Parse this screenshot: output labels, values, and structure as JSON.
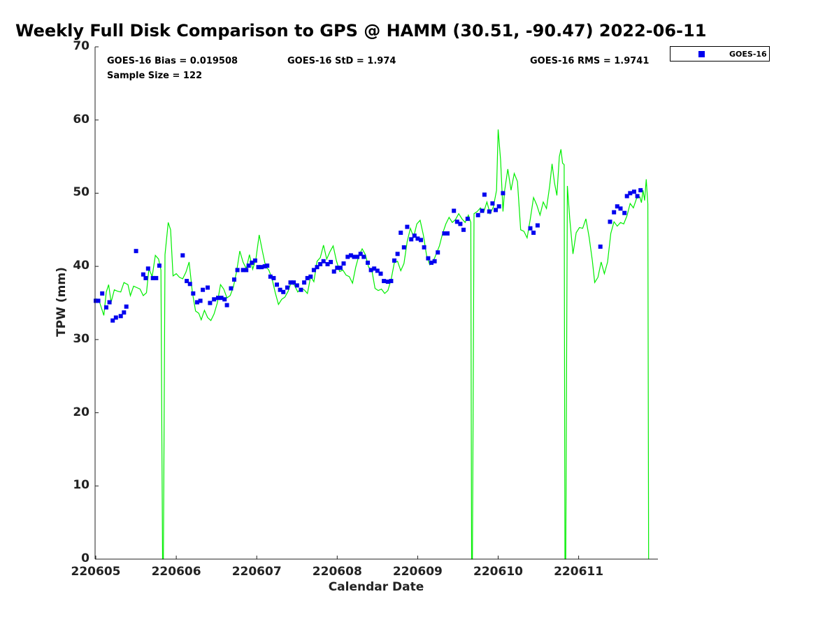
{
  "chart_data": {
    "type": "scatter",
    "title": "Weekly Full Disk Comparison to GPS @ HAMM (30.51, -90.47) 2022-06-11",
    "xlabel": "Calendar Date",
    "ylabel": "TPW (mm)",
    "x_ticks": [
      "220605",
      "220606",
      "220607",
      "220608",
      "220609",
      "220610",
      "220611"
    ],
    "y_ticks": [
      "0",
      "10",
      "20",
      "30",
      "40",
      "50",
      "60",
      "70"
    ],
    "xlim": [
      0,
      7
    ],
    "ylim": [
      0,
      70
    ],
    "stats": {
      "bias": "GOES-16 Bias = 0.019508",
      "std": "GOES-16 StD = 1.974",
      "rms": "GOES-16 RMS = 1.9741",
      "sample": "Sample Size = 122"
    },
    "legend": {
      "position": "top-right outside",
      "label": "GOES-16"
    },
    "colors": {
      "goes": "#0000ee",
      "gps": "#00ee00"
    },
    "series": [
      {
        "name": "GOES-16",
        "style": "square-markers",
        "points": [
          [
            0.0,
            35.3
          ],
          [
            0.03,
            35.3
          ],
          [
            0.08,
            36.3
          ],
          [
            0.13,
            34.4
          ],
          [
            0.17,
            35.1
          ],
          [
            0.21,
            32.6
          ],
          [
            0.25,
            33.0
          ],
          [
            0.31,
            33.2
          ],
          [
            0.35,
            33.7
          ],
          [
            0.38,
            34.5
          ],
          [
            0.5,
            42.1
          ],
          [
            0.59,
            38.9
          ],
          [
            0.62,
            38.4
          ],
          [
            0.65,
            39.7
          ],
          [
            0.71,
            38.4
          ],
          [
            0.75,
            38.4
          ],
          [
            0.79,
            40.1
          ],
          [
            1.08,
            41.5
          ],
          [
            1.13,
            38.0
          ],
          [
            1.17,
            37.6
          ],
          [
            1.21,
            36.3
          ],
          [
            1.26,
            35.1
          ],
          [
            1.3,
            35.3
          ],
          [
            1.33,
            36.8
          ],
          [
            1.39,
            37.1
          ],
          [
            1.42,
            35.0
          ],
          [
            1.47,
            35.5
          ],
          [
            1.52,
            35.7
          ],
          [
            1.56,
            35.7
          ],
          [
            1.6,
            35.5
          ],
          [
            1.63,
            34.7
          ],
          [
            1.68,
            37.0
          ],
          [
            1.72,
            38.2
          ],
          [
            1.76,
            39.5
          ],
          [
            1.83,
            39.5
          ],
          [
            1.87,
            39.5
          ],
          [
            1.9,
            40.1
          ],
          [
            1.94,
            40.5
          ],
          [
            1.98,
            40.8
          ],
          [
            2.02,
            39.9
          ],
          [
            2.06,
            39.9
          ],
          [
            2.1,
            40.0
          ],
          [
            2.13,
            40.1
          ],
          [
            2.17,
            38.6
          ],
          [
            2.21,
            38.4
          ],
          [
            2.25,
            37.5
          ],
          [
            2.29,
            36.8
          ],
          [
            2.33,
            36.5
          ],
          [
            2.38,
            37.1
          ],
          [
            2.42,
            37.8
          ],
          [
            2.46,
            37.8
          ],
          [
            2.5,
            37.4
          ],
          [
            2.55,
            36.8
          ],
          [
            2.59,
            37.8
          ],
          [
            2.63,
            38.4
          ],
          [
            2.67,
            38.6
          ],
          [
            2.71,
            39.5
          ],
          [
            2.75,
            39.9
          ],
          [
            2.79,
            40.3
          ],
          [
            2.83,
            40.7
          ],
          [
            2.88,
            40.3
          ],
          [
            2.92,
            40.6
          ],
          [
            2.96,
            39.3
          ],
          [
            3.0,
            39.8
          ],
          [
            3.04,
            39.8
          ],
          [
            3.08,
            40.4
          ],
          [
            3.13,
            41.3
          ],
          [
            3.17,
            41.5
          ],
          [
            3.21,
            41.3
          ],
          [
            3.25,
            41.3
          ],
          [
            3.29,
            41.7
          ],
          [
            3.33,
            41.3
          ],
          [
            3.38,
            40.5
          ],
          [
            3.42,
            39.5
          ],
          [
            3.46,
            39.7
          ],
          [
            3.5,
            39.4
          ],
          [
            3.54,
            39.0
          ],
          [
            3.58,
            38.0
          ],
          [
            3.63,
            37.9
          ],
          [
            3.67,
            38.0
          ],
          [
            3.71,
            40.8
          ],
          [
            3.75,
            41.7
          ],
          [
            3.79,
            44.6
          ],
          [
            3.83,
            42.6
          ],
          [
            3.87,
            45.4
          ],
          [
            3.92,
            43.7
          ],
          [
            3.96,
            44.2
          ],
          [
            4.0,
            43.8
          ],
          [
            4.04,
            43.6
          ],
          [
            4.08,
            42.6
          ],
          [
            4.13,
            41.1
          ],
          [
            4.17,
            40.5
          ],
          [
            4.21,
            40.7
          ],
          [
            4.25,
            41.9
          ],
          [
            4.33,
            44.5
          ],
          [
            4.37,
            44.5
          ],
          [
            4.45,
            47.6
          ],
          [
            4.49,
            46.1
          ],
          [
            4.53,
            45.8
          ],
          [
            4.57,
            45.0
          ],
          [
            4.62,
            46.5
          ],
          [
            4.75,
            47.0
          ],
          [
            4.8,
            47.6
          ],
          [
            4.83,
            49.8
          ],
          [
            4.89,
            47.5
          ],
          [
            4.93,
            48.6
          ],
          [
            4.97,
            47.7
          ],
          [
            5.01,
            48.2
          ],
          [
            5.06,
            50.0
          ],
          [
            5.4,
            45.2
          ],
          [
            5.44,
            44.6
          ],
          [
            5.49,
            45.6
          ],
          [
            6.27,
            42.7
          ],
          [
            6.39,
            46.1
          ],
          [
            6.44,
            47.4
          ],
          [
            6.48,
            48.2
          ],
          [
            6.52,
            47.9
          ],
          [
            6.57,
            47.3
          ],
          [
            6.6,
            49.6
          ],
          [
            6.64,
            50.0
          ],
          [
            6.69,
            50.2
          ],
          [
            6.73,
            49.6
          ],
          [
            6.77,
            50.4
          ]
        ]
      },
      {
        "name": "GPS",
        "style": "line",
        "points": [
          [
            0.0,
            35.6
          ],
          [
            0.05,
            35.0
          ],
          [
            0.1,
            33.3
          ],
          [
            0.13,
            36.5
          ],
          [
            0.16,
            37.5
          ],
          [
            0.19,
            35.1
          ],
          [
            0.23,
            36.8
          ],
          [
            0.27,
            36.6
          ],
          [
            0.31,
            36.5
          ],
          [
            0.35,
            37.8
          ],
          [
            0.4,
            37.5
          ],
          [
            0.43,
            36.0
          ],
          [
            0.47,
            37.3
          ],
          [
            0.51,
            37.1
          ],
          [
            0.55,
            36.9
          ],
          [
            0.59,
            36.0
          ],
          [
            0.63,
            36.4
          ],
          [
            0.66,
            39.7
          ],
          [
            0.7,
            38.6
          ],
          [
            0.74,
            41.5
          ],
          [
            0.78,
            41.0
          ],
          [
            0.81,
            39.5
          ],
          [
            0.83,
            0.0
          ],
          [
            0.84,
            0.0
          ],
          [
            0.86,
            41.6
          ],
          [
            0.9,
            46.0
          ],
          [
            0.93,
            45.0
          ],
          [
            0.96,
            38.7
          ],
          [
            1.0,
            39.0
          ],
          [
            1.04,
            38.5
          ],
          [
            1.08,
            38.3
          ],
          [
            1.12,
            39.2
          ],
          [
            1.16,
            40.6
          ],
          [
            1.2,
            36.5
          ],
          [
            1.24,
            33.9
          ],
          [
            1.28,
            33.6
          ],
          [
            1.31,
            32.7
          ],
          [
            1.35,
            34.0
          ],
          [
            1.39,
            33.0
          ],
          [
            1.43,
            32.6
          ],
          [
            1.47,
            33.5
          ],
          [
            1.51,
            35.0
          ],
          [
            1.55,
            37.5
          ],
          [
            1.59,
            36.9
          ],
          [
            1.63,
            35.7
          ],
          [
            1.67,
            36.0
          ],
          [
            1.71,
            37.2
          ],
          [
            1.75,
            39.3
          ],
          [
            1.79,
            42.1
          ],
          [
            1.83,
            40.6
          ],
          [
            1.87,
            39.7
          ],
          [
            1.91,
            41.6
          ],
          [
            1.95,
            39.6
          ],
          [
            1.99,
            41.0
          ],
          [
            2.03,
            44.3
          ],
          [
            2.07,
            42.1
          ],
          [
            2.11,
            40.0
          ],
          [
            2.15,
            39.5
          ],
          [
            2.19,
            38.3
          ],
          [
            2.23,
            36.4
          ],
          [
            2.27,
            34.8
          ],
          [
            2.31,
            35.5
          ],
          [
            2.35,
            35.8
          ],
          [
            2.39,
            36.6
          ],
          [
            2.43,
            37.9
          ],
          [
            2.47,
            37.4
          ],
          [
            2.51,
            36.5
          ],
          [
            2.55,
            37.0
          ],
          [
            2.59,
            36.8
          ],
          [
            2.63,
            36.3
          ],
          [
            2.67,
            38.6
          ],
          [
            2.71,
            37.9
          ],
          [
            2.75,
            40.7
          ],
          [
            2.79,
            41.2
          ],
          [
            2.83,
            42.9
          ],
          [
            2.87,
            41.0
          ],
          [
            2.91,
            42.0
          ],
          [
            2.95,
            42.8
          ],
          [
            2.99,
            40.8
          ],
          [
            3.03,
            39.3
          ],
          [
            3.07,
            39.5
          ],
          [
            3.11,
            38.8
          ],
          [
            3.15,
            38.6
          ],
          [
            3.19,
            37.7
          ],
          [
            3.23,
            39.9
          ],
          [
            3.27,
            41.5
          ],
          [
            3.31,
            42.4
          ],
          [
            3.35,
            41.6
          ],
          [
            3.39,
            39.9
          ],
          [
            3.43,
            39.5
          ],
          [
            3.47,
            37.0
          ],
          [
            3.51,
            36.7
          ],
          [
            3.55,
            36.9
          ],
          [
            3.59,
            36.3
          ],
          [
            3.63,
            36.7
          ],
          [
            3.67,
            38.2
          ],
          [
            3.71,
            40.5
          ],
          [
            3.75,
            40.7
          ],
          [
            3.79,
            39.4
          ],
          [
            3.83,
            40.4
          ],
          [
            3.87,
            43.4
          ],
          [
            3.91,
            45.2
          ],
          [
            3.95,
            44.0
          ],
          [
            3.99,
            45.8
          ],
          [
            4.03,
            46.3
          ],
          [
            4.07,
            44.3
          ],
          [
            4.11,
            41.5
          ],
          [
            4.15,
            40.2
          ],
          [
            4.19,
            40.6
          ],
          [
            4.23,
            41.7
          ],
          [
            4.27,
            42.8
          ],
          [
            4.31,
            44.5
          ],
          [
            4.35,
            45.8
          ],
          [
            4.39,
            46.7
          ],
          [
            4.43,
            46.0
          ],
          [
            4.47,
            46.4
          ],
          [
            4.51,
            47.2
          ],
          [
            4.55,
            46.5
          ],
          [
            4.59,
            46.0
          ],
          [
            4.63,
            47.0
          ],
          [
            4.66,
            46.0
          ],
          [
            4.67,
            0.0
          ],
          [
            4.68,
            0.0
          ],
          [
            4.7,
            47.2
          ],
          [
            4.74,
            47.5
          ],
          [
            4.78,
            48.0
          ],
          [
            4.82,
            47.4
          ],
          [
            4.86,
            48.8
          ],
          [
            4.9,
            47.2
          ],
          [
            4.94,
            48.1
          ],
          [
            4.98,
            50.4
          ],
          [
            5.0,
            58.7
          ],
          [
            5.03,
            54.5
          ],
          [
            5.06,
            47.5
          ],
          [
            5.08,
            50.3
          ],
          [
            5.12,
            53.3
          ],
          [
            5.16,
            50.4
          ],
          [
            5.2,
            52.7
          ],
          [
            5.24,
            51.6
          ],
          [
            5.28,
            45.0
          ],
          [
            5.32,
            44.8
          ],
          [
            5.36,
            43.9
          ],
          [
            5.4,
            46.5
          ],
          [
            5.44,
            49.4
          ],
          [
            5.48,
            48.4
          ],
          [
            5.52,
            47.0
          ],
          [
            5.56,
            48.8
          ],
          [
            5.6,
            47.9
          ],
          [
            5.64,
            51.0
          ],
          [
            5.67,
            54.0
          ],
          [
            5.7,
            51.4
          ],
          [
            5.73,
            49.7
          ],
          [
            5.76,
            55.0
          ],
          [
            5.78,
            56.0
          ],
          [
            5.8,
            54.1
          ],
          [
            5.82,
            53.9
          ],
          [
            5.83,
            0.0
          ],
          [
            5.84,
            0.0
          ],
          [
            5.86,
            51.0
          ],
          [
            5.89,
            46.5
          ],
          [
            5.93,
            41.7
          ],
          [
            5.97,
            44.6
          ],
          [
            6.01,
            45.3
          ],
          [
            6.05,
            45.2
          ],
          [
            6.09,
            46.5
          ],
          [
            6.13,
            44.0
          ],
          [
            6.17,
            40.8
          ],
          [
            6.2,
            37.8
          ],
          [
            6.24,
            38.5
          ],
          [
            6.28,
            40.6
          ],
          [
            6.32,
            39.0
          ],
          [
            6.36,
            40.6
          ],
          [
            6.4,
            44.5
          ],
          [
            6.44,
            46.1
          ],
          [
            6.48,
            45.5
          ],
          [
            6.52,
            46.0
          ],
          [
            6.56,
            45.8
          ],
          [
            6.6,
            46.9
          ],
          [
            6.64,
            48.6
          ],
          [
            6.68,
            48.0
          ],
          [
            6.72,
            49.3
          ],
          [
            6.76,
            49.5
          ],
          [
            6.78,
            48.7
          ],
          [
            6.8,
            50.4
          ],
          [
            6.82,
            49.0
          ],
          [
            6.84,
            51.9
          ],
          [
            6.86,
            48.5
          ],
          [
            6.87,
            0.0
          ]
        ]
      }
    ]
  }
}
